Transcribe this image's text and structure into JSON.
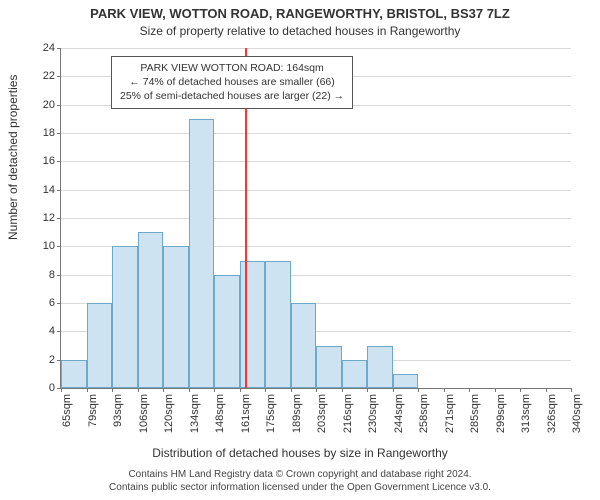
{
  "title": "PARK VIEW, WOTTON ROAD, RANGEWORTHY, BRISTOL, BS37 7LZ",
  "subtitle": "Size of property relative to detached houses in Rangeworthy",
  "ylabel": "Number of detached properties",
  "xlabel": "Distribution of detached houses by size in Rangeworthy",
  "footer_line1": "Contains HM Land Registry data © Crown copyright and database right 2024.",
  "footer_line2": "Contains public sector information licensed under the Open Government Licence v3.0.",
  "chart": {
    "type": "histogram",
    "y": {
      "min": 0,
      "max": 24,
      "tick_step": 2,
      "fontsize": 11
    },
    "x": {
      "tick_labels": [
        "65sqm",
        "79sqm",
        "93sqm",
        "106sqm",
        "120sqm",
        "134sqm",
        "148sqm",
        "161sqm",
        "175sqm",
        "189sqm",
        "203sqm",
        "216sqm",
        "230sqm",
        "244sqm",
        "258sqm",
        "271sqm",
        "285sqm",
        "299sqm",
        "313sqm",
        "326sqm",
        "340sqm"
      ],
      "fontsize": 11
    },
    "bars": [
      2,
      6,
      10,
      11,
      10,
      19,
      8,
      9,
      9,
      6,
      3,
      2,
      3,
      1,
      0,
      0,
      0,
      0,
      0,
      0
    ],
    "bar_color": "#cde3f2",
    "bar_border": "#6ea9c9",
    "grid_color": "#d9d9d9",
    "background": "#ffffff",
    "marker": {
      "value_sqm": 164,
      "color": "#ff3333"
    },
    "annotation": {
      "line1": "PARK VIEW WOTTON ROAD: 164sqm",
      "line2": "← 74% of detached houses are smaller (66)",
      "line3": "25% of semi-detached houses are larger (22) →",
      "border": "#555555",
      "bg": "#ffffff",
      "fontsize": 10.5
    }
  }
}
